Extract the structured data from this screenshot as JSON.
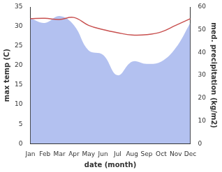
{
  "chart_data": {
    "type": "line",
    "x_label": "date (month)",
    "y_label": "max temp (C)",
    "y2_label": "med. precipitation (kg/m2)",
    "categories": [
      "Jan",
      "Feb",
      "Mar",
      "Apr",
      "May",
      "Jun",
      "Jul",
      "Aug",
      "Sep",
      "Oct",
      "Nov",
      "Dec"
    ],
    "ylim": [
      0,
      35
    ],
    "yticks": [
      0,
      5,
      10,
      15,
      20,
      25,
      30,
      35
    ],
    "y2lim": [
      0,
      60
    ],
    "y2ticks": [
      0,
      10,
      20,
      30,
      40,
      50,
      60
    ],
    "grid": false,
    "series": [
      {
        "type": "line",
        "color": "#c8504f",
        "values": [
          32.0,
          32.1,
          31.8,
          32.3,
          30.3,
          29.2,
          28.4,
          27.8,
          27.9,
          28.6,
          30.3,
          32.0
        ]
      },
      {
        "type": "area",
        "axis": "y2",
        "color": "#b3c1f0",
        "values": [
          55,
          53,
          56,
          52,
          41,
          39,
          30,
          36,
          35,
          36,
          42,
          53
        ]
      }
    ]
  }
}
